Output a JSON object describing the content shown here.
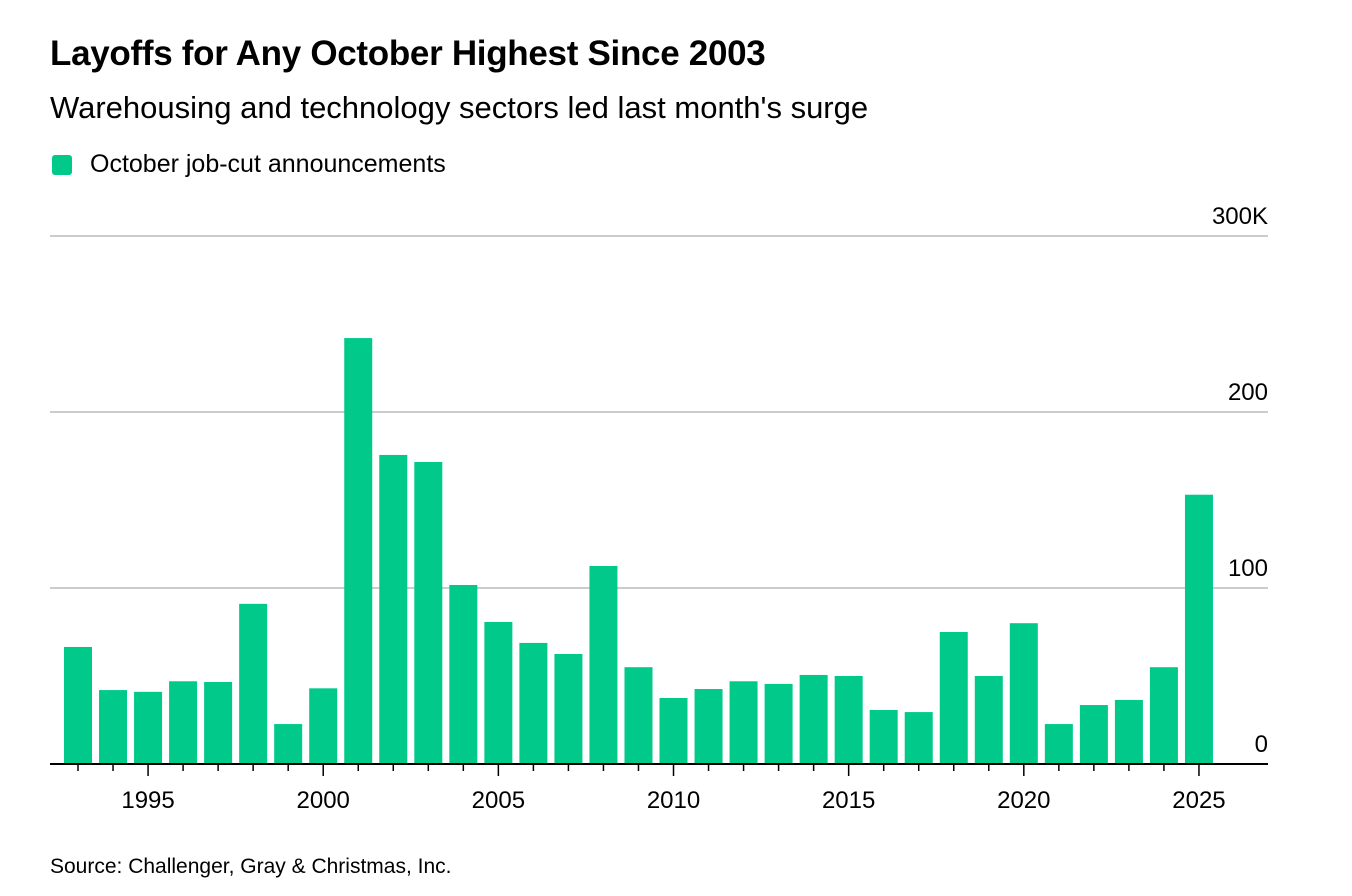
{
  "title": "Layoffs for Any October Highest Since 2003",
  "subtitle": "Warehousing and technology sectors led last month's surge",
  "source": "Source: Challenger, Gray & Christmas, Inc.",
  "colors": {
    "bar": "#00c98a",
    "grid": "#cccccc",
    "axis": "#000000"
  },
  "chart_data": {
    "type": "bar",
    "title": "Layoffs for Any October Highest Since 2003",
    "xlabel": "",
    "ylabel": "",
    "legend": [
      {
        "label": "October job-cut announcements",
        "position": "top-left"
      }
    ],
    "categories": [
      1993,
      1994,
      1995,
      1996,
      1997,
      1998,
      1999,
      2000,
      2001,
      2002,
      2003,
      2004,
      2005,
      2006,
      2007,
      2008,
      2009,
      2010,
      2011,
      2012,
      2013,
      2014,
      2015,
      2016,
      2017,
      2018,
      2019,
      2020,
      2021,
      2022,
      2023,
      2024,
      2025
    ],
    "series": [
      {
        "name": "October job-cut announcements",
        "values": [
          66.5,
          42,
          41,
          47,
          46.6,
          91,
          22.7,
          43,
          242,
          175.6,
          171.6,
          101.7,
          80.7,
          68.8,
          62.5,
          112.5,
          55,
          37.5,
          42.6,
          47,
          45.5,
          50.6,
          50,
          30.7,
          29.5,
          75,
          50,
          80,
          22.7,
          33.5,
          36.4,
          55,
          153
        ]
      }
    ],
    "units": "thousands",
    "ylim": [
      0,
      300
    ],
    "yticks": [
      {
        "value": 0,
        "label": "0"
      },
      {
        "value": 100,
        "label": "100"
      },
      {
        "value": 200,
        "label": "200"
      },
      {
        "value": 300,
        "label": "300K"
      }
    ],
    "xticks": [
      {
        "value": 1995,
        "label": "1995"
      },
      {
        "value": 2000,
        "label": "2000"
      },
      {
        "value": 2005,
        "label": "2005"
      },
      {
        "value": 2010,
        "label": "2010"
      },
      {
        "value": 2015,
        "label": "2015"
      },
      {
        "value": 2020,
        "label": "2020"
      },
      {
        "value": 2025,
        "label": "2025"
      }
    ],
    "grid": true
  }
}
